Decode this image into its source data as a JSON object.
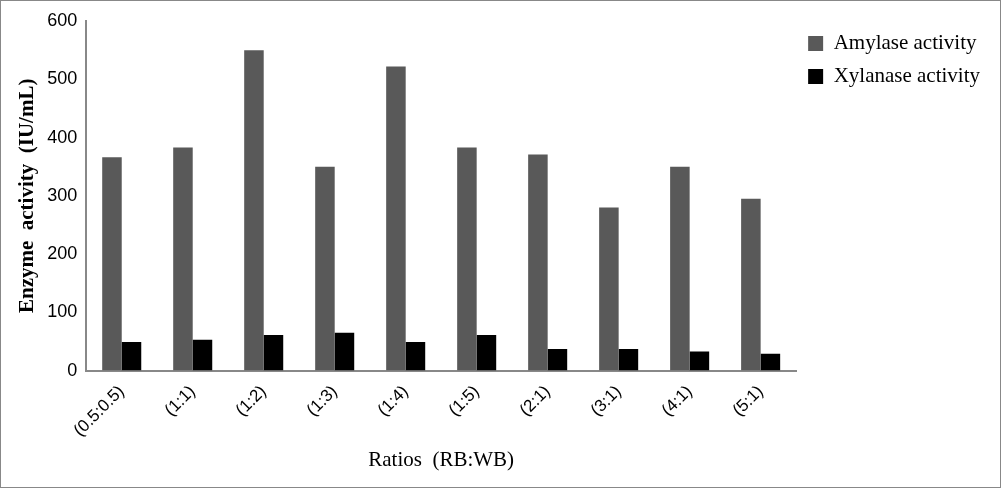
{
  "chart_data": {
    "type": "bar",
    "xlabel": "Ratios  (RB:WB)",
    "ylabel": "Enzyme  activity  (IU/mL)",
    "categories": [
      "(0.5:0.5)",
      "(1:1)",
      "(1:2)",
      "(1:3)",
      "(1:4)",
      "(1:5)",
      "(2:1)",
      "(3:1)",
      "(4:1)",
      "(5:1)"
    ],
    "series": [
      {
        "name": "Amylase activity",
        "color": "#595959",
        "values": [
          366,
          383,
          550,
          350,
          522,
          383,
          371,
          280,
          350,
          295
        ]
      },
      {
        "name": "Xylanase activity",
        "color": "#000000",
        "values": [
          49,
          53,
          61,
          65,
          49,
          61,
          37,
          37,
          33,
          29
        ]
      }
    ],
    "ylim": [
      0,
      600
    ],
    "yticks": [
      0,
      100,
      200,
      300,
      400,
      500,
      600
    ],
    "grid": false,
    "legend": "top right"
  }
}
